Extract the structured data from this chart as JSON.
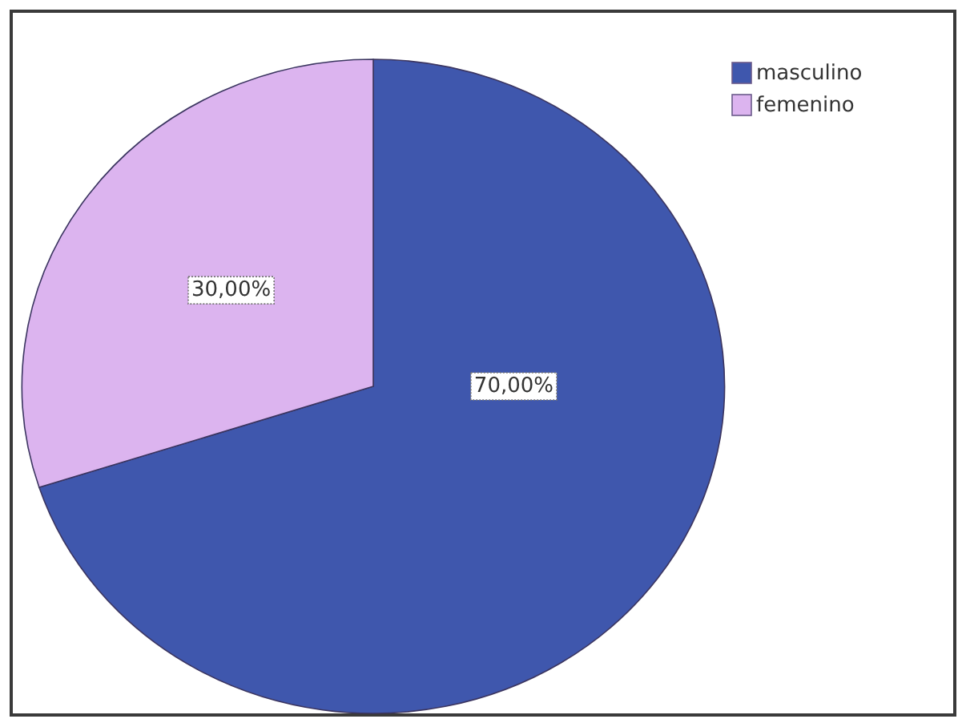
{
  "chart_data": {
    "type": "pie",
    "categories": [
      "masculino",
      "femenino"
    ],
    "values": [
      70,
      30
    ],
    "colors": [
      "#3f57ad",
      "#dcb4ef"
    ],
    "value_labels": [
      "70,00%",
      "30,00%"
    ],
    "legend": "top right"
  }
}
